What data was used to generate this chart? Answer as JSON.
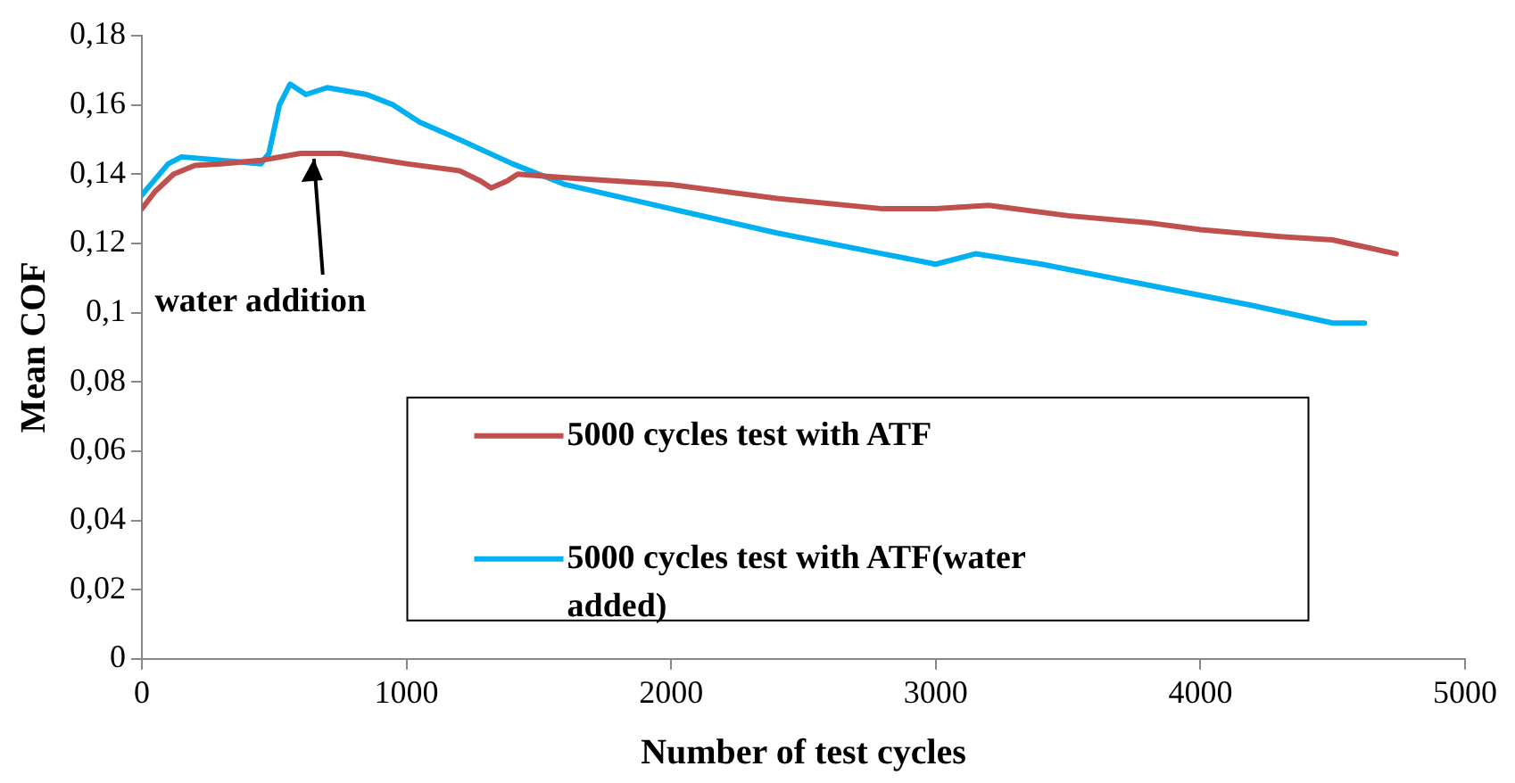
{
  "chart_data": {
    "type": "line",
    "xlabel": "Number of test cycles",
    "ylabel": "Mean COF",
    "xlim": [
      0,
      5000
    ],
    "xticks": [
      0,
      1000,
      2000,
      3000,
      4000,
      5000
    ],
    "ylim": [
      0,
      0.18
    ],
    "yticks": [
      {
        "value": 0,
        "label": "0"
      },
      {
        "value": 0.02,
        "label": "0,02"
      },
      {
        "value": 0.04,
        "label": "0,04"
      },
      {
        "value": 0.06,
        "label": "0,06"
      },
      {
        "value": 0.08,
        "label": "0,08"
      },
      {
        "value": 0.1,
        "label": "0,1"
      },
      {
        "value": 0.12,
        "label": "0,12"
      },
      {
        "value": 0.14,
        "label": "0,14"
      },
      {
        "value": 0.16,
        "label": "0,16"
      },
      {
        "value": 0.18,
        "label": "0,18"
      }
    ],
    "grid": false,
    "legend": "bottom",
    "marker": "none",
    "line_style": "solid",
    "annotations": [
      {
        "text": "water addition",
        "x": 650,
        "y": 0.146
      }
    ],
    "series": [
      {
        "name": "5000 cycles test with ATF",
        "color": "#c0504d",
        "x": [
          0,
          50,
          120,
          200,
          300,
          450,
          600,
          750,
          1000,
          1200,
          1280,
          1320,
          1380,
          1420,
          1600,
          2000,
          2400,
          2800,
          3000,
          3200,
          3500,
          3800,
          4000,
          4300,
          4500,
          4740
        ],
        "values": [
          0.13,
          0.135,
          0.14,
          0.1425,
          0.143,
          0.144,
          0.146,
          0.146,
          0.143,
          0.141,
          0.138,
          0.136,
          0.138,
          0.14,
          0.139,
          0.137,
          0.133,
          0.13,
          0.13,
          0.131,
          0.128,
          0.126,
          0.124,
          0.122,
          0.121,
          0.117
        ]
      },
      {
        "name": "5000 cycles test with ATF(water added)",
        "color": "#00b0f0",
        "x": [
          0,
          100,
          150,
          300,
          450,
          480,
          520,
          560,
          620,
          700,
          850,
          950,
          1050,
          1200,
          1400,
          1600,
          2000,
          2400,
          2800,
          3000,
          3150,
          3400,
          3800,
          4200,
          4500,
          4620
        ],
        "values": [
          0.134,
          0.143,
          0.145,
          0.144,
          0.143,
          0.146,
          0.16,
          0.166,
          0.163,
          0.165,
          0.163,
          0.16,
          0.155,
          0.15,
          0.143,
          0.137,
          0.13,
          0.123,
          0.117,
          0.114,
          0.117,
          0.114,
          0.108,
          0.102,
          0.097,
          0.097
        ]
      }
    ]
  }
}
